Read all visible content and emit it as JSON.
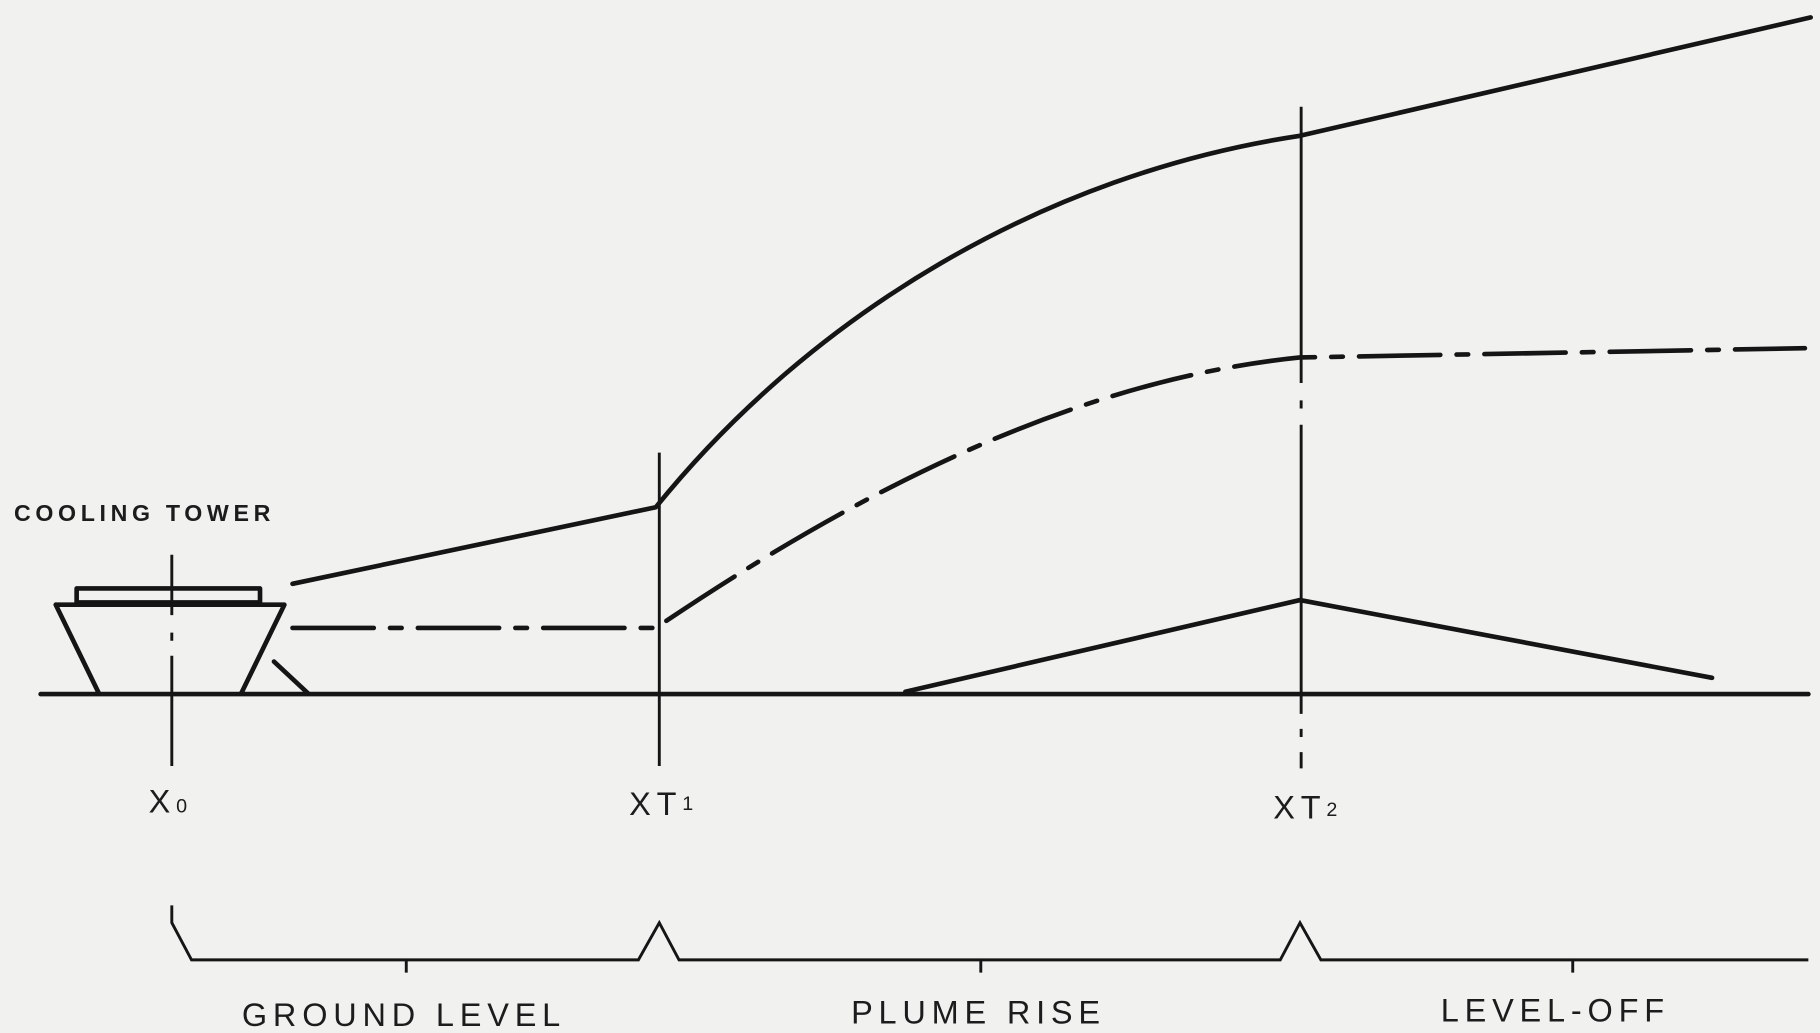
{
  "labels": {
    "tower": "COOLING TOWER"
  },
  "markers": [
    {
      "main": "X",
      "sub": "0"
    },
    {
      "main": "XT",
      "sub": "1"
    },
    {
      "main": "XT",
      "sub": "2"
    }
  ],
  "phases": [
    "GROUND LEVEL",
    "PLUME RISE",
    "LEVEL-OFF"
  ]
}
